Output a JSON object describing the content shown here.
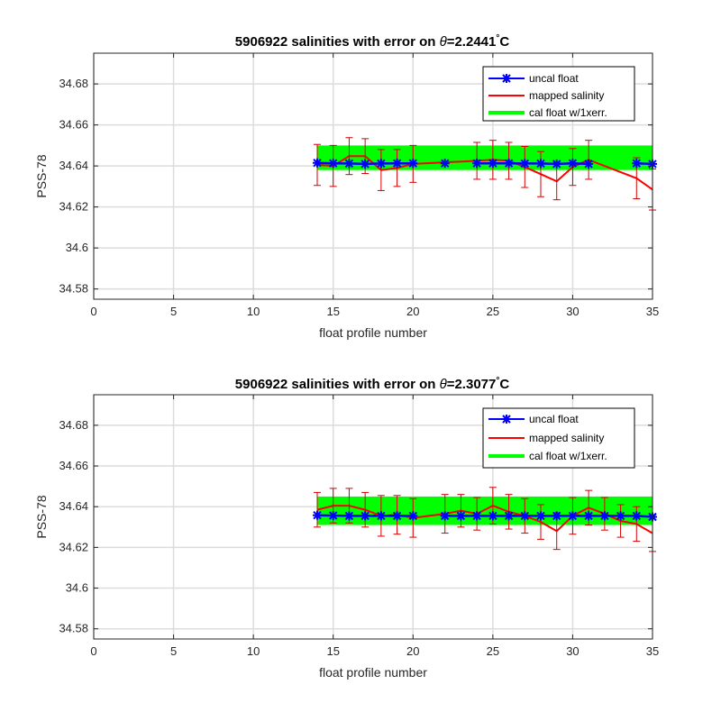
{
  "chart_data": [
    {
      "type": "line",
      "title": {
        "prefix": "5906922 salinities with error on ",
        "theta": "θ",
        "value": "=2.2441",
        "degree": "°",
        "unit": "C"
      },
      "xlabel": "float profile number",
      "ylabel": "PSS-78",
      "xlim": [
        0,
        35
      ],
      "ylim": [
        34.575,
        34.695
      ],
      "xticks": [
        "0",
        "5",
        "10",
        "15",
        "20",
        "25",
        "30",
        "35"
      ],
      "yticks": [
        "34.58",
        "34.6",
        "34.62",
        "34.64",
        "34.66",
        "34.68"
      ],
      "grid": true,
      "legend_position": "top-right",
      "colors": {
        "uncal": "#0000ff",
        "mapped": "#ff0000",
        "errbar": "#d40000",
        "cal": "#00ff00"
      },
      "series": [
        {
          "name": "uncal float",
          "segments": [
            [
              [
                14,
                34.6415
              ],
              [
                15,
                34.6413
              ],
              [
                16,
                34.6412
              ],
              [
                17,
                34.641
              ],
              [
                18,
                34.6412
              ],
              [
                19,
                34.6413
              ],
              [
                20,
                34.6413
              ]
            ],
            [
              [
                22,
                34.6413
              ]
            ],
            [
              [
                24,
                34.6413
              ],
              [
                25,
                34.6413
              ],
              [
                26,
                34.6413
              ],
              [
                27,
                34.6412
              ],
              [
                28,
                34.6412
              ],
              [
                29,
                34.641
              ],
              [
                30,
                34.6413
              ],
              [
                31,
                34.641
              ]
            ],
            [
              [
                34,
                34.6413
              ],
              [
                35,
                34.641
              ]
            ]
          ]
        },
        {
          "name": "mapped salinity",
          "points": [
            [
              14,
              34.6405
            ],
            [
              15,
              34.64
            ],
            [
              16,
              34.6448
            ],
            [
              17,
              34.6448
            ],
            [
              18,
              34.638
            ],
            [
              19,
              34.639
            ],
            [
              20,
              34.641
            ],
            [
              24,
              34.6425
            ],
            [
              25,
              34.643
            ],
            [
              26,
              34.6425
            ],
            [
              27,
              34.6395
            ],
            [
              28,
              34.636
            ],
            [
              29,
              34.6325
            ],
            [
              30,
              34.6395
            ],
            [
              31,
              34.643
            ],
            [
              34,
              34.634
            ],
            [
              35,
              34.6285
            ]
          ],
          "errors": [
            0.01,
            0.01,
            0.009,
            0.0085,
            0.01,
            0.009,
            0.009,
            0.009,
            0.0095,
            0.009,
            0.01,
            0.011,
            0.009,
            0.009,
            0.0095,
            0.01,
            0.01
          ]
        },
        {
          "name": "cal float w/1xerr.",
          "x": [
            14,
            35
          ],
          "lower": 34.638,
          "upper": 34.65
        }
      ]
    },
    {
      "type": "line",
      "title": {
        "prefix": "5906922 salinities with error on ",
        "theta": "θ",
        "value": "=2.3077",
        "degree": "°",
        "unit": "C"
      },
      "xlabel": "float profile number",
      "ylabel": "PSS-78",
      "xlim": [
        0,
        35
      ],
      "ylim": [
        34.575,
        34.695
      ],
      "xticks": [
        "0",
        "5",
        "10",
        "15",
        "20",
        "25",
        "30",
        "35"
      ],
      "yticks": [
        "34.58",
        "34.6",
        "34.62",
        "34.64",
        "34.66",
        "34.68"
      ],
      "grid": true,
      "legend_position": "top-right",
      "colors": {
        "uncal": "#0000ff",
        "mapped": "#ff0000",
        "errbar": "#d40000",
        "cal": "#00ff00"
      },
      "series": [
        {
          "name": "uncal float",
          "segments": [
            [
              [
                14,
                34.6358
              ],
              [
                15,
                34.6356
              ],
              [
                16,
                34.6355
              ],
              [
                17,
                34.6355
              ],
              [
                18,
                34.6355
              ],
              [
                19,
                34.6355
              ],
              [
                20,
                34.6355
              ]
            ],
            [
              [
                22,
                34.6355
              ],
              [
                23,
                34.6355
              ],
              [
                24,
                34.6355
              ],
              [
                25,
                34.6355
              ],
              [
                26,
                34.6355
              ],
              [
                27,
                34.6355
              ],
              [
                28,
                34.6355
              ],
              [
                29,
                34.6355
              ],
              [
                30,
                34.6355
              ],
              [
                31,
                34.6355
              ],
              [
                32,
                34.6355
              ],
              [
                33,
                34.6355
              ],
              [
                34,
                34.6355
              ],
              [
                35,
                34.635
              ]
            ]
          ]
        },
        {
          "name": "mapped salinity",
          "points": [
            [
              14,
              34.6385
            ],
            [
              15,
              34.6405
            ],
            [
              16,
              34.6405
            ],
            [
              17,
              34.6385
            ],
            [
              18,
              34.6355
            ],
            [
              19,
              34.636
            ],
            [
              20,
              34.6345
            ],
            [
              22,
              34.6365
            ],
            [
              23,
              34.638
            ],
            [
              24,
              34.6365
            ],
            [
              25,
              34.6405
            ],
            [
              26,
              34.6375
            ],
            [
              27,
              34.6355
            ],
            [
              28,
              34.6325
            ],
            [
              29,
              34.628
            ],
            [
              30,
              34.6355
            ],
            [
              31,
              34.6395
            ],
            [
              32,
              34.6365
            ],
            [
              33,
              34.633
            ],
            [
              34,
              34.6315
            ],
            [
              35,
              34.627
            ]
          ],
          "errors": [
            0.0085,
            0.0085,
            0.0085,
            0.0085,
            0.01,
            0.0095,
            0.0095,
            0.0095,
            0.008,
            0.008,
            0.009,
            0.0085,
            0.0085,
            0.0085,
            0.009,
            0.009,
            0.0085,
            0.008,
            0.008,
            0.0085,
            0.009
          ]
        },
        {
          "name": "cal float w/1xerr.",
          "x": [
            14,
            35
          ],
          "lower": 34.631,
          "upper": 34.645
        }
      ]
    }
  ]
}
